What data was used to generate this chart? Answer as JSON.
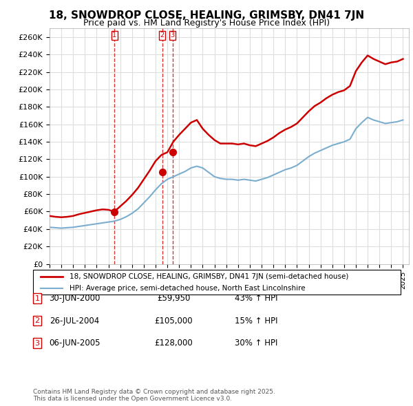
{
  "title": "18, SNOWDROP CLOSE, HEALING, GRIMSBY, DN41 7JN",
  "subtitle": "Price paid vs. HM Land Registry's House Price Index (HPI)",
  "ylabel_ticks": [
    "£0",
    "£20K",
    "£40K",
    "£60K",
    "£80K",
    "£100K",
    "£120K",
    "£140K",
    "£160K",
    "£180K",
    "£200K",
    "£220K",
    "£240K",
    "£260K"
  ],
  "ytick_values": [
    0,
    20000,
    40000,
    60000,
    80000,
    100000,
    120000,
    140000,
    160000,
    180000,
    200000,
    220000,
    240000,
    260000
  ],
  "ylim": [
    0,
    270000
  ],
  "xlim_start": 1995.0,
  "xlim_end": 2025.5,
  "transactions": [
    {
      "label": "1",
      "date_num": 2000.5,
      "price": 59950
    },
    {
      "label": "2",
      "date_num": 2004.57,
      "price": 105000
    },
    {
      "label": "3",
      "date_num": 2005.43,
      "price": 128000
    }
  ],
  "legend_entries": [
    {
      "label": "18, SNOWDROP CLOSE, HEALING, GRIMSBY, DN41 7JN (semi-detached house)",
      "color": "#cc0000",
      "lw": 2.0
    },
    {
      "label": "HPI: Average price, semi-detached house, North East Lincolnshire",
      "color": "#6699cc",
      "lw": 1.5
    }
  ],
  "table_rows": [
    {
      "num": "1",
      "date": "30-JUN-2000",
      "price": "£59,950",
      "hpi": "43% ↑ HPI"
    },
    {
      "num": "2",
      "date": "26-JUL-2004",
      "price": "£105,000",
      "hpi": "15% ↑ HPI"
    },
    {
      "num": "3",
      "date": "06-JUN-2005",
      "price": "£128,000",
      "hpi": "30% ↑ HPI"
    }
  ],
  "footer": "Contains HM Land Registry data © Crown copyright and database right 2025.\nThis data is licensed under the Open Government Licence v3.0.",
  "background_color": "#ffffff",
  "grid_color": "#dddddd",
  "vline_color": "#cc0000",
  "marker_color": "#cc0000"
}
